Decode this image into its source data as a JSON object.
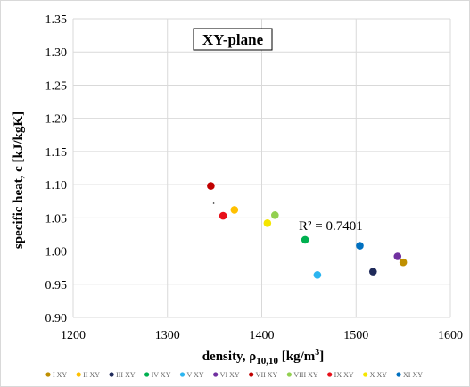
{
  "chart_data": {
    "type": "scatter",
    "title": "XY-plane",
    "xlabel": "density, ρ",
    "xlabel_sub": "10,10",
    "xlabel_unit": " [kg/m",
    "xlabel_sup": "3",
    "xlabel_end": "]",
    "ylabel": "specific heat, c [kJ/kgK]",
    "xlim": [
      1200,
      1600
    ],
    "ylim": [
      0.9,
      1.35
    ],
    "xticks": [
      "1200",
      "1300",
      "1400",
      "1500",
      "1600"
    ],
    "yticks": [
      "0.90",
      "0.95",
      "1.00",
      "1.05",
      "1.10",
      "1.15",
      "1.20",
      "1.25",
      "1.30",
      "1.35"
    ],
    "grid": true,
    "legend_position": "bottom",
    "annotation": "R² = 0.7401",
    "series": [
      {
        "name": "I XY",
        "color": "#BF8F00",
        "x": 1550,
        "y": 0.983
      },
      {
        "name": "II XY",
        "color": "#FFC000",
        "x": 1371,
        "y": 1.062
      },
      {
        "name": "III XY",
        "color": "#1F2A5A",
        "x": 1518,
        "y": 0.969
      },
      {
        "name": "IV XY",
        "color": "#00B050",
        "x": 1446,
        "y": 1.017
      },
      {
        "name": "V XY",
        "color": "#2BB5F0",
        "x": 1459,
        "y": 0.964
      },
      {
        "name": "VI XY",
        "color": "#7030A0",
        "x": 1544,
        "y": 0.992
      },
      {
        "name": "VII XY",
        "color": "#C00000",
        "x": 1346,
        "y": 1.098
      },
      {
        "name": "VIII XY",
        "color": "#92D050",
        "x": 1414,
        "y": 1.054
      },
      {
        "name": "IX XY",
        "color": "#E8101A",
        "x": 1359,
        "y": 1.053
      },
      {
        "name": "X XY",
        "color": "#F5E600",
        "x": 1406,
        "y": 1.042
      },
      {
        "name": "XI XY",
        "color": "#0070C0",
        "x": 1504,
        "y": 1.008
      }
    ]
  }
}
